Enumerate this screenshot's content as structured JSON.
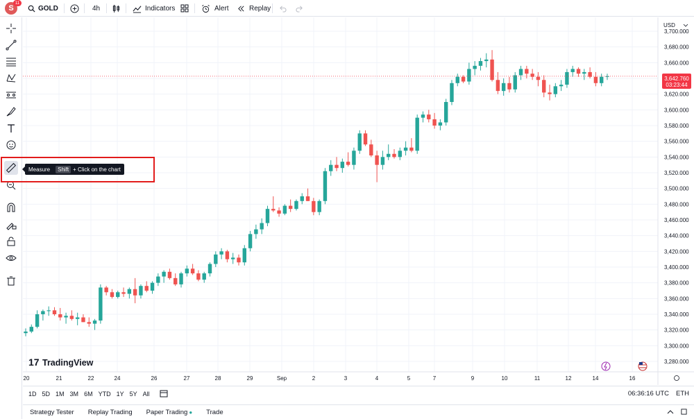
{
  "topbar": {
    "avatar_letter": "S",
    "avatar_badge": "11",
    "symbol": "GOLD",
    "interval": "4h",
    "indicators_label": "Indicators",
    "alert_label": "Alert",
    "replay_label": "Replay"
  },
  "left_toolbar": {
    "tools": [
      "crosshair-icon",
      "trend-line-icon",
      "fib-icon",
      "pattern-icon",
      "projection-icon",
      "brush-icon",
      "text-icon",
      "emoji-icon",
      "ruler-icon",
      "zoom-icon",
      "magnet-icon",
      "lock-draw-icon",
      "lock-icon",
      "eye-icon",
      "trash-icon"
    ]
  },
  "tooltip": {
    "title": "Measure",
    "key": "Shift",
    "hint": "+ Click on the chart"
  },
  "chart": {
    "currency": "USD",
    "watermark": "TradingView",
    "last_price": "3,642.760",
    "countdown": "03:23:44",
    "price_ticks": [
      "3,700.000",
      "3,680.000",
      "3,660.000",
      "3,640.000",
      "3,620.000",
      "3,600.000",
      "3,580.000",
      "3,560.000",
      "3,540.000",
      "3,520.000",
      "3,500.000",
      "3,480.000",
      "3,460.000",
      "3,440.000",
      "3,420.000",
      "3,400.000",
      "3,380.000",
      "3,360.000",
      "3,340.000",
      "3,320.000",
      "3,300.000",
      "3,280.000"
    ],
    "time_ticks": [
      "20",
      "21",
      "22",
      "24",
      "26",
      "27",
      "28",
      "29",
      "Sep",
      "2",
      "3",
      "4",
      "5",
      "7",
      "9",
      "10",
      "11",
      "12",
      "14",
      "16"
    ],
    "colors": {
      "up": "#26a69a",
      "down": "#ef5350",
      "last_price_line": "#f23645"
    }
  },
  "chart_data": {
    "type": "candlestick",
    "ylim": [
      3280,
      3700
    ],
    "candles": [
      [
        3316,
        3322,
        3312,
        3318
      ],
      [
        3318,
        3327,
        3316,
        3324
      ],
      [
        3324,
        3345,
        3322,
        3340
      ],
      [
        3340,
        3346,
        3332,
        3344
      ],
      [
        3344,
        3350,
        3338,
        3345
      ],
      [
        3345,
        3349,
        3338,
        3340
      ],
      [
        3340,
        3348,
        3332,
        3336
      ],
      [
        3336,
        3342,
        3328,
        3338
      ],
      [
        3338,
        3345,
        3332,
        3334
      ],
      [
        3334,
        3342,
        3326,
        3336
      ],
      [
        3336,
        3340,
        3330,
        3330
      ],
      [
        3330,
        3336,
        3324,
        3328
      ],
      [
        3328,
        3334,
        3320,
        3332
      ],
      [
        3332,
        3378,
        3328,
        3374
      ],
      [
        3374,
        3376,
        3364,
        3368
      ],
      [
        3368,
        3372,
        3360,
        3362
      ],
      [
        3362,
        3370,
        3360,
        3368
      ],
      [
        3368,
        3374,
        3362,
        3366
      ],
      [
        3366,
        3374,
        3360,
        3372
      ],
      [
        3372,
        3386,
        3354,
        3364
      ],
      [
        3364,
        3378,
        3360,
        3376
      ],
      [
        3376,
        3382,
        3368,
        3370
      ],
      [
        3370,
        3382,
        3366,
        3380
      ],
      [
        3380,
        3392,
        3376,
        3388
      ],
      [
        3388,
        3396,
        3380,
        3394
      ],
      [
        3394,
        3398,
        3384,
        3386
      ],
      [
        3386,
        3392,
        3376,
        3378
      ],
      [
        3378,
        3394,
        3374,
        3392
      ],
      [
        3392,
        3402,
        3388,
        3398
      ],
      [
        3398,
        3404,
        3390,
        3392
      ],
      [
        3392,
        3396,
        3382,
        3384
      ],
      [
        3384,
        3394,
        3380,
        3392
      ],
      [
        3392,
        3406,
        3388,
        3404
      ],
      [
        3404,
        3420,
        3400,
        3416
      ],
      [
        3416,
        3424,
        3410,
        3420
      ],
      [
        3420,
        3422,
        3406,
        3410
      ],
      [
        3410,
        3418,
        3404,
        3412
      ],
      [
        3412,
        3416,
        3402,
        3406
      ],
      [
        3406,
        3428,
        3402,
        3424
      ],
      [
        3424,
        3446,
        3420,
        3442
      ],
      [
        3442,
        3454,
        3436,
        3448
      ],
      [
        3448,
        3462,
        3442,
        3456
      ],
      [
        3456,
        3478,
        3452,
        3474
      ],
      [
        3474,
        3490,
        3470,
        3472
      ],
      [
        3472,
        3476,
        3464,
        3468
      ],
      [
        3468,
        3480,
        3466,
        3478
      ],
      [
        3478,
        3486,
        3470,
        3474
      ],
      [
        3474,
        3486,
        3472,
        3484
      ],
      [
        3484,
        3494,
        3480,
        3490
      ],
      [
        3490,
        3500,
        3484,
        3484
      ],
      [
        3484,
        3488,
        3466,
        3470
      ],
      [
        3470,
        3486,
        3466,
        3484
      ],
      [
        3484,
        3526,
        3480,
        3522
      ],
      [
        3522,
        3536,
        3516,
        3530
      ],
      [
        3530,
        3540,
        3522,
        3526
      ],
      [
        3526,
        3538,
        3520,
        3534
      ],
      [
        3534,
        3546,
        3528,
        3530
      ],
      [
        3530,
        3552,
        3524,
        3548
      ],
      [
        3548,
        3574,
        3544,
        3570
      ],
      [
        3570,
        3574,
        3554,
        3556
      ],
      [
        3556,
        3562,
        3540,
        3542
      ],
      [
        3542,
        3548,
        3508,
        3530
      ],
      [
        3530,
        3548,
        3524,
        3540
      ],
      [
        3540,
        3556,
        3536,
        3544
      ],
      [
        3544,
        3550,
        3538,
        3540
      ],
      [
        3540,
        3552,
        3536,
        3548
      ],
      [
        3548,
        3560,
        3542,
        3552
      ],
      [
        3552,
        3564,
        3546,
        3548
      ],
      [
        3548,
        3594,
        3544,
        3590
      ],
      [
        3590,
        3598,
        3584,
        3594
      ],
      [
        3594,
        3600,
        3584,
        3588
      ],
      [
        3588,
        3596,
        3576,
        3580
      ],
      [
        3580,
        3588,
        3574,
        3584
      ],
      [
        3584,
        3614,
        3580,
        3610
      ],
      [
        3610,
        3638,
        3606,
        3634
      ],
      [
        3634,
        3646,
        3630,
        3642
      ],
      [
        3642,
        3644,
        3634,
        3636
      ],
      [
        3636,
        3660,
        3632,
        3652
      ],
      [
        3652,
        3662,
        3644,
        3656
      ],
      [
        3656,
        3666,
        3650,
        3662
      ],
      [
        3662,
        3672,
        3654,
        3664
      ],
      [
        3664,
        3676,
        3636,
        3638
      ],
      [
        3638,
        3648,
        3620,
        3624
      ],
      [
        3624,
        3640,
        3618,
        3634
      ],
      [
        3634,
        3642,
        3622,
        3626
      ],
      [
        3626,
        3648,
        3622,
        3644
      ],
      [
        3644,
        3656,
        3638,
        3652
      ],
      [
        3652,
        3656,
        3640,
        3646
      ],
      [
        3646,
        3652,
        3638,
        3642
      ],
      [
        3642,
        3648,
        3630,
        3638
      ],
      [
        3638,
        3644,
        3616,
        3622
      ],
      [
        3622,
        3632,
        3612,
        3620
      ],
      [
        3620,
        3634,
        3616,
        3630
      ],
      [
        3630,
        3638,
        3624,
        3632
      ],
      [
        3632,
        3652,
        3628,
        3648
      ],
      [
        3648,
        3656,
        3642,
        3652
      ],
      [
        3652,
        3654,
        3642,
        3646
      ],
      [
        3646,
        3652,
        3638,
        3648
      ],
      [
        3648,
        3654,
        3640,
        3642
      ],
      [
        3642,
        3648,
        3630,
        3634
      ],
      [
        3634,
        3646,
        3630,
        3642
      ],
      [
        3642,
        3646,
        3638,
        3642.76
      ]
    ]
  },
  "range_bar": {
    "ranges": [
      "1D",
      "5D",
      "1M",
      "3M",
      "6M",
      "YTD",
      "1Y",
      "5Y",
      "All"
    ],
    "clock": "06:36:16 UTC",
    "session": "ETH"
  },
  "bottom_tabs": [
    "Strategy Tester",
    "Replay Trading",
    "Paper Trading",
    "Trade"
  ]
}
